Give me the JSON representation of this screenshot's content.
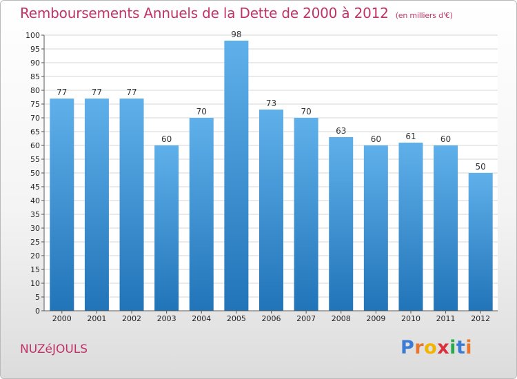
{
  "title": "Remboursements Annuels de la Dette de 2000 à 2012",
  "unit": "(en milliers d'€)",
  "commune": "NUZéJOULS",
  "logo": {
    "letters": [
      "P",
      "r",
      "o",
      "x",
      "i",
      "t",
      "i"
    ],
    "colors": [
      "#3a7bd5",
      "#e8762c",
      "#f2b400",
      "#d9303b",
      "#2aa84a",
      "#3a7bd5",
      "#e8762c"
    ]
  },
  "colors": {
    "title": "#c03366",
    "bar_top": "#5fb0ea",
    "bar_bottom": "#2174b8",
    "grid": "#d6d6d6",
    "axis": "#555555"
  },
  "chart_data": {
    "type": "bar",
    "categories": [
      "2000",
      "2001",
      "2002",
      "2003",
      "2004",
      "2005",
      "2006",
      "2007",
      "2008",
      "2009",
      "2010",
      "2011",
      "2012"
    ],
    "values": [
      77,
      77,
      77,
      60,
      70,
      98,
      73,
      70,
      63,
      60,
      61,
      60,
      50
    ],
    "ylim": [
      0,
      100
    ],
    "yticks": [
      0,
      5,
      10,
      15,
      20,
      25,
      30,
      35,
      40,
      45,
      50,
      55,
      60,
      65,
      70,
      75,
      80,
      85,
      90,
      95,
      100
    ],
    "grid": true,
    "data_labels": true
  }
}
